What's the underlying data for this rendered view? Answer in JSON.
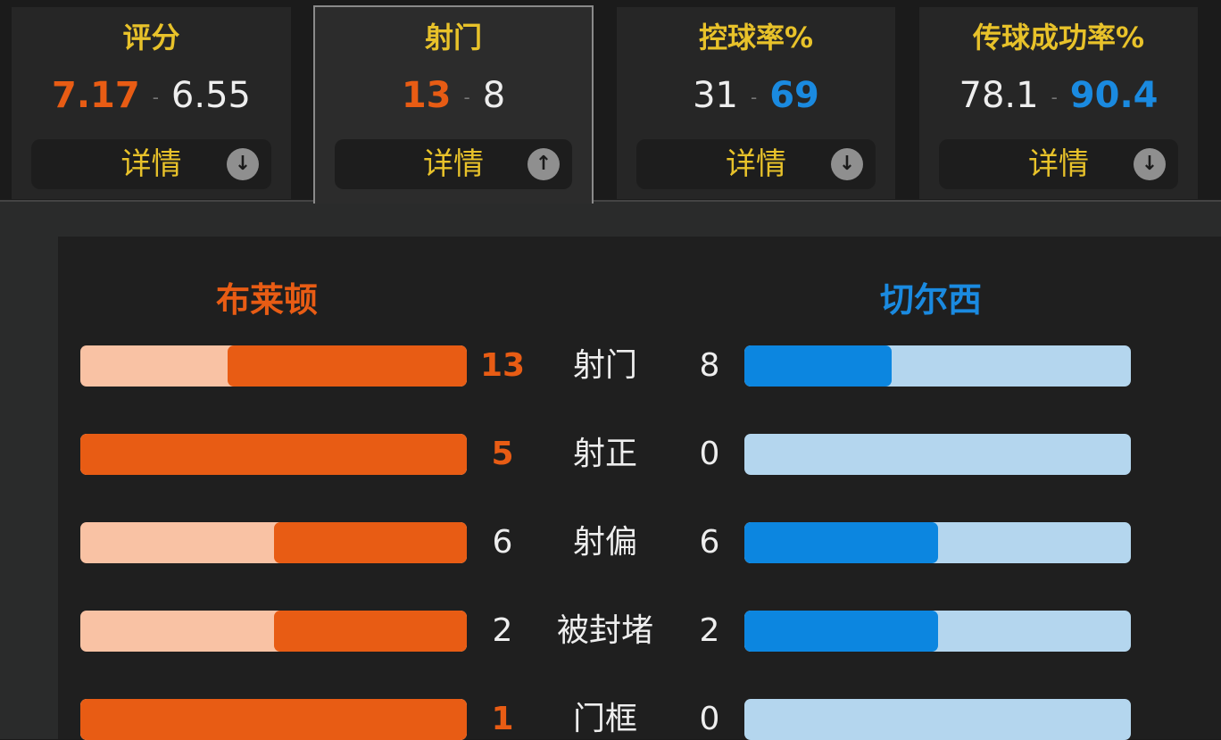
{
  "tabs": [
    {
      "title": "评分",
      "home": "7.17",
      "away": "6.55",
      "highlight": "home",
      "detail": "详情",
      "icon": "arrow-down-icon",
      "active": false
    },
    {
      "title": "射门",
      "home": "13",
      "away": "8",
      "highlight": "home",
      "detail": "详情",
      "icon": "arrow-up-icon",
      "active": true
    },
    {
      "title": "控球率%",
      "home": "31",
      "away": "69",
      "highlight": "away",
      "detail": "详情",
      "icon": "arrow-down-icon",
      "active": false
    },
    {
      "title": "传球成功率%",
      "home": "78.1",
      "away": "90.4",
      "highlight": "away",
      "detail": "详情",
      "icon": "arrow-down-icon",
      "active": false
    }
  ],
  "separator": "-",
  "teams": {
    "home": "布莱顿",
    "away": "切尔西"
  },
  "colors": {
    "home": "#e85c14",
    "home_light": "#f9c2a4",
    "away": "#0c86e0",
    "away_light": "#b4d6ee",
    "accent": "#e8c22a"
  },
  "stats": [
    {
      "label": "射门",
      "home": 13,
      "away": 8,
      "highlight": "home"
    },
    {
      "label": "射正",
      "home": 5,
      "away": 0,
      "highlight": "home"
    },
    {
      "label": "射偏",
      "home": 6,
      "away": 6,
      "highlight": "none"
    },
    {
      "label": "被封堵",
      "home": 2,
      "away": 2,
      "highlight": "none"
    },
    {
      "label": "门框",
      "home": 1,
      "away": 0,
      "highlight": "home"
    }
  ]
}
